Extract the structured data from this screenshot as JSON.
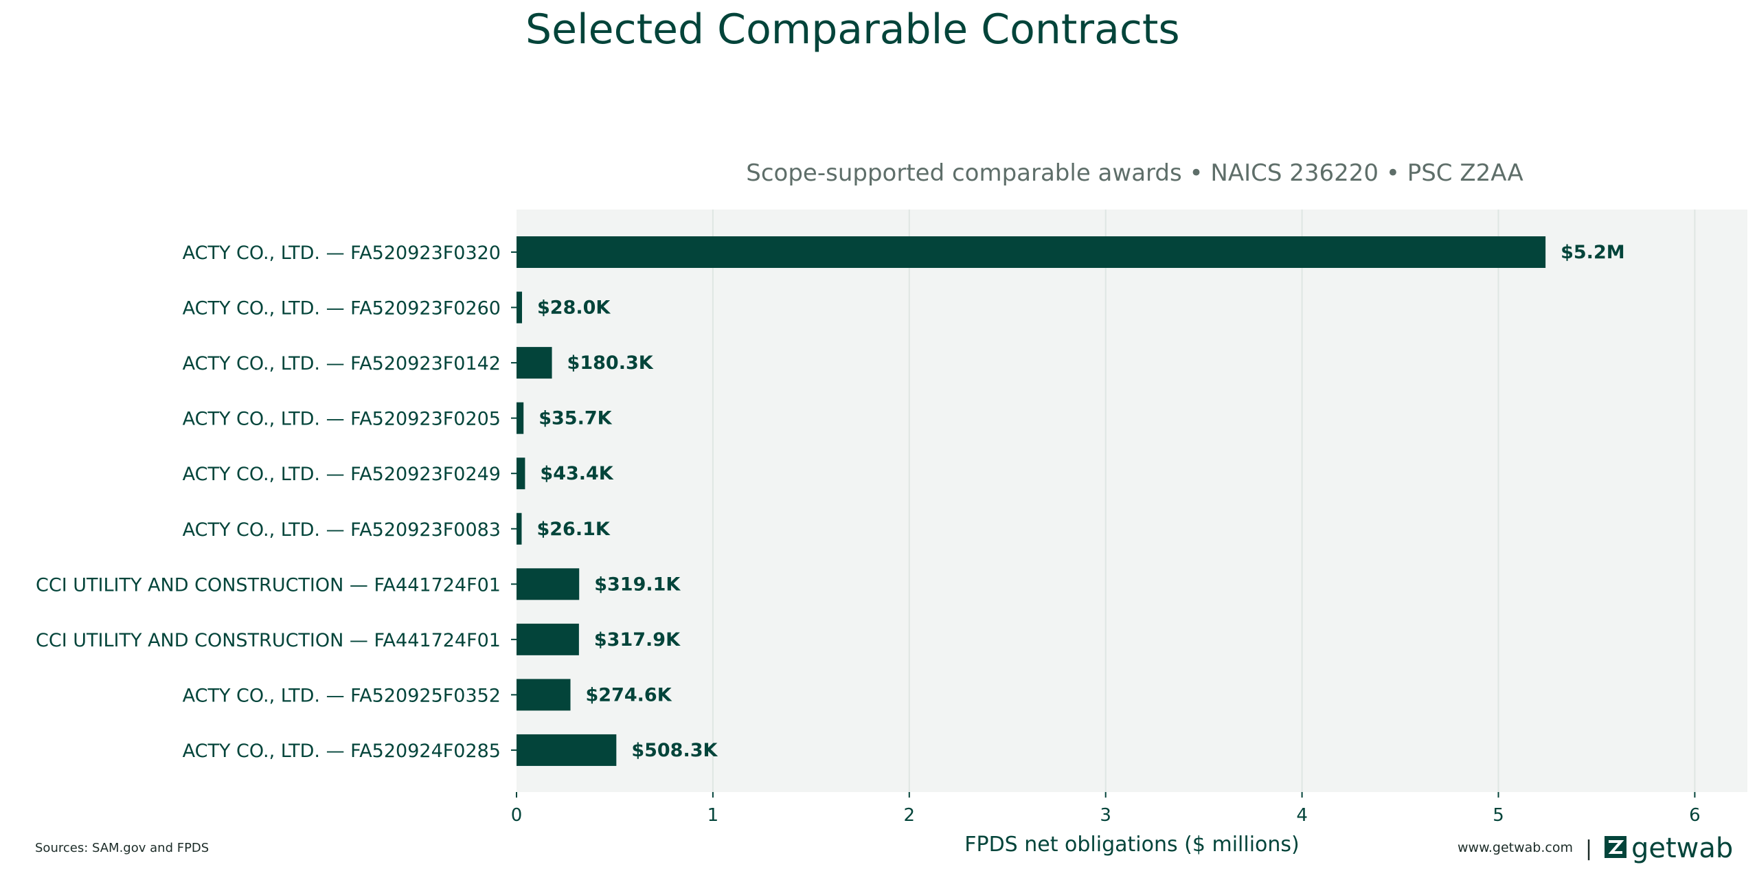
{
  "colors": {
    "bar": "#03443a",
    "title": "#03443a",
    "subtitle": "#5e6e69",
    "plot_bg": "#f2f4f3",
    "grid": "#dfe6e3",
    "axis_text": "#03443a"
  },
  "footer": {
    "sources": "Sources: SAM.gov and FPDS",
    "website": "www.getwab.com",
    "separator": "|",
    "brand": "getwab",
    "brand_icon": "getwab-logo-icon"
  },
  "chart_data": {
    "type": "bar",
    "orientation": "horizontal",
    "title": "Selected Comparable Contracts",
    "subtitle": "Scope-supported comparable awards • NAICS 236220 • PSC Z2AA",
    "xlabel": "FPDS net obligations ($ millions)",
    "ylabel": "",
    "xlim": [
      0,
      6.28
    ],
    "xticks": [
      0,
      1,
      2,
      3,
      4,
      5,
      6
    ],
    "xtick_labels": [
      "0",
      "1",
      "2",
      "3",
      "4",
      "5",
      "6"
    ],
    "grid": "vertical",
    "categories": [
      "ACTY CO., LTD. — FA520923F0320",
      "ACTY CO., LTD. — FA520923F0260",
      "ACTY CO., LTD. — FA520923F0142",
      "ACTY CO., LTD. — FA520923F0205",
      "ACTY CO., LTD. — FA520923F0249",
      "ACTY CO., LTD. — FA520923F0083",
      "CCI UTILITY AND CONSTRUCTION — FA441724F01",
      "CCI UTILITY AND CONSTRUCTION — FA441724F01",
      "ACTY CO., LTD. — FA520925F0352",
      "ACTY CO., LTD. — FA520924F0285"
    ],
    "values": [
      5.24,
      0.028,
      0.1803,
      0.0357,
      0.0434,
      0.0261,
      0.3191,
      0.3179,
      0.2746,
      0.5083
    ],
    "value_labels": [
      "$5.2M",
      "$28.0K",
      "$180.3K",
      "$35.7K",
      "$43.4K",
      "$26.1K",
      "$319.1K",
      "$317.9K",
      "$274.6K",
      "$508.3K"
    ]
  }
}
